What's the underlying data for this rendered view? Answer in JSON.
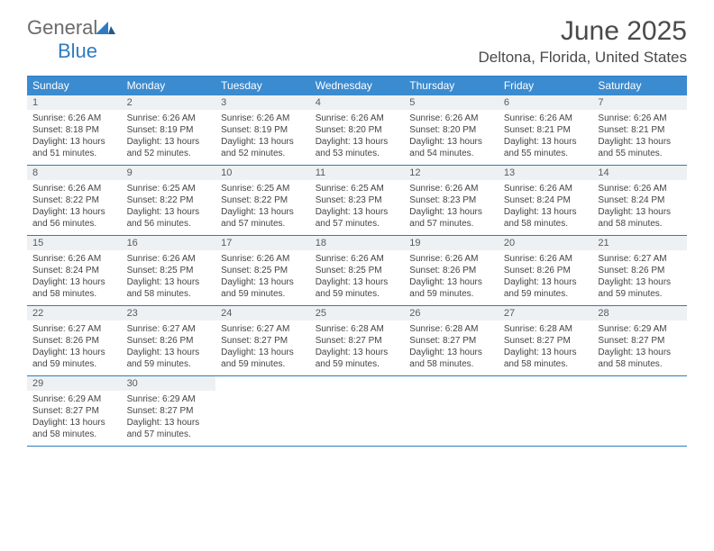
{
  "brand": {
    "g": "General",
    "b": "Blue"
  },
  "title": "June 2025",
  "location": "Deltona, Florida, United States",
  "colors": {
    "header_bg": "#3b8bd0",
    "rule": "#2f7bbf",
    "daybar": "#eef1f3"
  },
  "day_names": [
    "Sunday",
    "Monday",
    "Tuesday",
    "Wednesday",
    "Thursday",
    "Friday",
    "Saturday"
  ],
  "weeks": [
    [
      {
        "n": "1",
        "sr": "6:26 AM",
        "ss": "8:18 PM",
        "dl": "13 hours and 51 minutes."
      },
      {
        "n": "2",
        "sr": "6:26 AM",
        "ss": "8:19 PM",
        "dl": "13 hours and 52 minutes."
      },
      {
        "n": "3",
        "sr": "6:26 AM",
        "ss": "8:19 PM",
        "dl": "13 hours and 52 minutes."
      },
      {
        "n": "4",
        "sr": "6:26 AM",
        "ss": "8:20 PM",
        "dl": "13 hours and 53 minutes."
      },
      {
        "n": "5",
        "sr": "6:26 AM",
        "ss": "8:20 PM",
        "dl": "13 hours and 54 minutes."
      },
      {
        "n": "6",
        "sr": "6:26 AM",
        "ss": "8:21 PM",
        "dl": "13 hours and 55 minutes."
      },
      {
        "n": "7",
        "sr": "6:26 AM",
        "ss": "8:21 PM",
        "dl": "13 hours and 55 minutes."
      }
    ],
    [
      {
        "n": "8",
        "sr": "6:26 AM",
        "ss": "8:22 PM",
        "dl": "13 hours and 56 minutes."
      },
      {
        "n": "9",
        "sr": "6:25 AM",
        "ss": "8:22 PM",
        "dl": "13 hours and 56 minutes."
      },
      {
        "n": "10",
        "sr": "6:25 AM",
        "ss": "8:22 PM",
        "dl": "13 hours and 57 minutes."
      },
      {
        "n": "11",
        "sr": "6:25 AM",
        "ss": "8:23 PM",
        "dl": "13 hours and 57 minutes."
      },
      {
        "n": "12",
        "sr": "6:26 AM",
        "ss": "8:23 PM",
        "dl": "13 hours and 57 minutes."
      },
      {
        "n": "13",
        "sr": "6:26 AM",
        "ss": "8:24 PM",
        "dl": "13 hours and 58 minutes."
      },
      {
        "n": "14",
        "sr": "6:26 AM",
        "ss": "8:24 PM",
        "dl": "13 hours and 58 minutes."
      }
    ],
    [
      {
        "n": "15",
        "sr": "6:26 AM",
        "ss": "8:24 PM",
        "dl": "13 hours and 58 minutes."
      },
      {
        "n": "16",
        "sr": "6:26 AM",
        "ss": "8:25 PM",
        "dl": "13 hours and 58 minutes."
      },
      {
        "n": "17",
        "sr": "6:26 AM",
        "ss": "8:25 PM",
        "dl": "13 hours and 59 minutes."
      },
      {
        "n": "18",
        "sr": "6:26 AM",
        "ss": "8:25 PM",
        "dl": "13 hours and 59 minutes."
      },
      {
        "n": "19",
        "sr": "6:26 AM",
        "ss": "8:26 PM",
        "dl": "13 hours and 59 minutes."
      },
      {
        "n": "20",
        "sr": "6:26 AM",
        "ss": "8:26 PM",
        "dl": "13 hours and 59 minutes."
      },
      {
        "n": "21",
        "sr": "6:27 AM",
        "ss": "8:26 PM",
        "dl": "13 hours and 59 minutes."
      }
    ],
    [
      {
        "n": "22",
        "sr": "6:27 AM",
        "ss": "8:26 PM",
        "dl": "13 hours and 59 minutes."
      },
      {
        "n": "23",
        "sr": "6:27 AM",
        "ss": "8:26 PM",
        "dl": "13 hours and 59 minutes."
      },
      {
        "n": "24",
        "sr": "6:27 AM",
        "ss": "8:27 PM",
        "dl": "13 hours and 59 minutes."
      },
      {
        "n": "25",
        "sr": "6:28 AM",
        "ss": "8:27 PM",
        "dl": "13 hours and 59 minutes."
      },
      {
        "n": "26",
        "sr": "6:28 AM",
        "ss": "8:27 PM",
        "dl": "13 hours and 58 minutes."
      },
      {
        "n": "27",
        "sr": "6:28 AM",
        "ss": "8:27 PM",
        "dl": "13 hours and 58 minutes."
      },
      {
        "n": "28",
        "sr": "6:29 AM",
        "ss": "8:27 PM",
        "dl": "13 hours and 58 minutes."
      }
    ],
    [
      {
        "n": "29",
        "sr": "6:29 AM",
        "ss": "8:27 PM",
        "dl": "13 hours and 58 minutes."
      },
      {
        "n": "30",
        "sr": "6:29 AM",
        "ss": "8:27 PM",
        "dl": "13 hours and 57 minutes."
      },
      null,
      null,
      null,
      null,
      null
    ]
  ],
  "labels": {
    "sunrise": "Sunrise:",
    "sunset": "Sunset:",
    "daylight": "Daylight:"
  }
}
